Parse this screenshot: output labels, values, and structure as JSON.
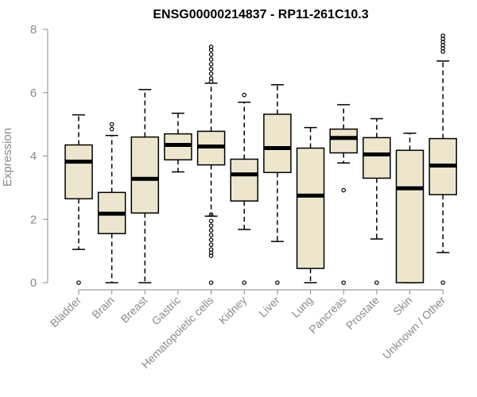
{
  "chart_data": {
    "type": "boxplot",
    "title": "ENSG00000214837 - RP11-261C10.3",
    "xlabel": "",
    "ylabel": "Expression",
    "ylim": [
      0,
      8
    ],
    "yticks": [
      0,
      2,
      4,
      6,
      8
    ],
    "grid": false,
    "box_fill": "#ede6cf",
    "categories": [
      "Bladder",
      "Brain",
      "Breast",
      "Gastric",
      "Hematopoietic cells",
      "Kidney",
      "Liver",
      "Lung",
      "Pancreas",
      "Prostate",
      "Skin",
      "Unknown / Other"
    ],
    "boxes": [
      {
        "min": 1.05,
        "q1": 2.65,
        "median": 3.82,
        "q3": 4.35,
        "max": 5.3,
        "outliers": [
          0.0
        ]
      },
      {
        "min": 0.0,
        "q1": 1.55,
        "median": 2.18,
        "q3": 2.85,
        "max": 4.65,
        "outliers": [
          4.85,
          5.0
        ]
      },
      {
        "min": 0.0,
        "q1": 2.2,
        "median": 3.28,
        "q3": 4.6,
        "max": 6.1,
        "outliers": []
      },
      {
        "min": 3.5,
        "q1": 3.88,
        "median": 4.35,
        "q3": 4.7,
        "max": 5.35,
        "outliers": []
      },
      {
        "min": 2.1,
        "q1": 3.72,
        "median": 4.3,
        "q3": 4.78,
        "max": 6.3,
        "outliers": [
          0.0,
          0.85,
          0.95,
          1.05,
          1.2,
          1.35,
          1.5,
          1.65,
          1.8,
          1.95,
          2.15,
          6.35,
          6.45,
          6.6,
          6.75,
          6.9,
          7.05,
          7.2,
          7.35,
          7.45
        ]
      },
      {
        "min": 1.68,
        "q1": 2.58,
        "median": 3.42,
        "q3": 3.9,
        "max": 5.7,
        "outliers": [
          0.0,
          5.93
        ]
      },
      {
        "min": 1.3,
        "q1": 3.48,
        "median": 4.25,
        "q3": 5.32,
        "max": 6.25,
        "outliers": [
          0.0
        ]
      },
      {
        "min": 0.0,
        "q1": 0.45,
        "median": 2.75,
        "q3": 4.25,
        "max": 4.9,
        "outliers": []
      },
      {
        "min": 3.78,
        "q1": 4.1,
        "median": 4.57,
        "q3": 4.85,
        "max": 5.62,
        "outliers": [
          0.0,
          2.92
        ]
      },
      {
        "min": 1.38,
        "q1": 3.3,
        "median": 4.05,
        "q3": 4.58,
        "max": 5.18,
        "outliers": [
          0.0
        ]
      },
      {
        "min": 0.0,
        "q1": 0.0,
        "median": 2.98,
        "q3": 4.18,
        "max": 4.72,
        "outliers": []
      },
      {
        "min": 0.95,
        "q1": 2.78,
        "median": 3.7,
        "q3": 4.55,
        "max": 7.0,
        "outliers": [
          0.0,
          7.3,
          7.4,
          7.5,
          7.6,
          7.7,
          7.8
        ]
      }
    ]
  }
}
